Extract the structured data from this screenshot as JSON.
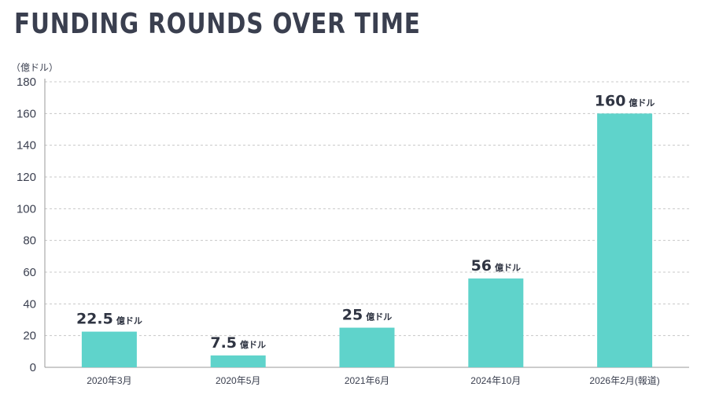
{
  "chart_data": {
    "type": "bar",
    "title": "FUNDING ROUNDS OVER TIME",
    "unit_label": "（億ドル）",
    "categories": [
      "2020年3月",
      "2020年5月",
      "2021年6月",
      "2024年10月",
      "2026年2月(報道)"
    ],
    "values": [
      22.5,
      7.5,
      25,
      56,
      160
    ],
    "value_labels": [
      "22.5",
      "7.5",
      "25",
      "56",
      "160"
    ],
    "value_unit": "億ドル",
    "yticks": [
      "0",
      "20",
      "40",
      "60",
      "80",
      "100",
      "120",
      "140",
      "160",
      "180"
    ],
    "ylim": [
      0,
      180
    ],
    "grid": true,
    "legend": "none",
    "bar_color": "#5fd3cb",
    "text_color": "#3a3f4f"
  }
}
